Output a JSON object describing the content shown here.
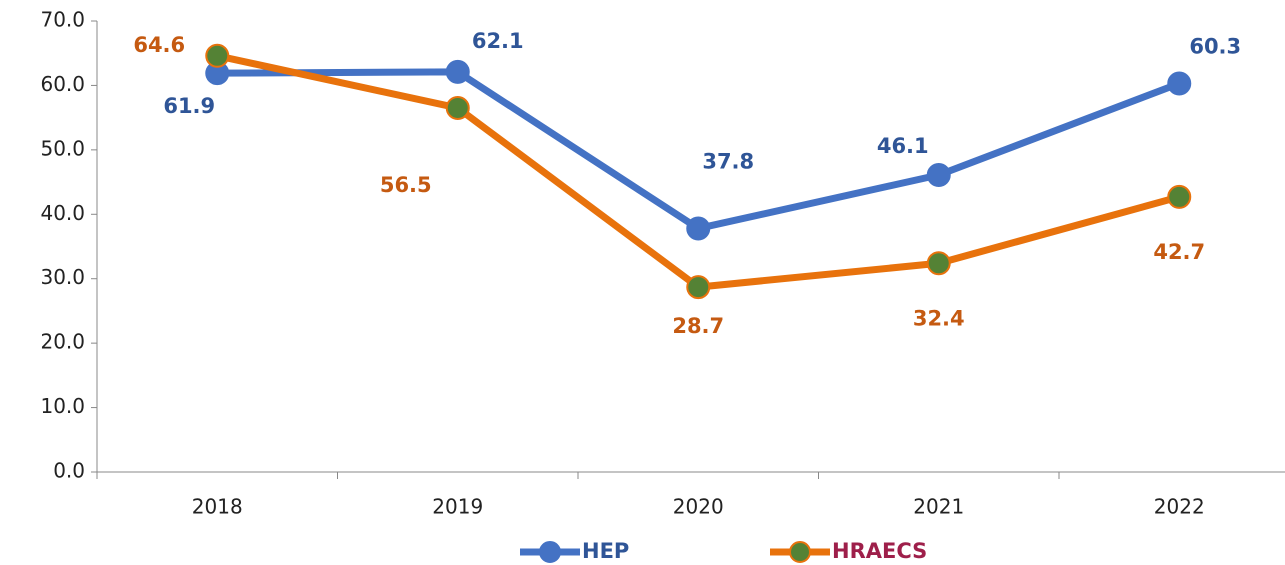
{
  "chart_data": {
    "type": "line",
    "categories": [
      "2018",
      "2019",
      "2020",
      "2021",
      "2022"
    ],
    "series": [
      {
        "name": "HEP",
        "color": "#4472c4",
        "marker_color": "#4472c4",
        "label_color": "#2f5597",
        "legend_color": "#2f5597",
        "values": [
          61.9,
          62.1,
          37.8,
          46.1,
          60.3
        ]
      },
      {
        "name": "HRAECS",
        "color": "#e8720c",
        "marker_color": "#548235",
        "label_color": "#c55a11",
        "legend_color": "#9e1f4a",
        "values": [
          64.6,
          56.5,
          28.7,
          32.4,
          42.7
        ]
      }
    ],
    "ylim": [
      0,
      70
    ],
    "yticks": [
      {
        "value": 0,
        "label": "0.0"
      },
      {
        "value": 10,
        "label": "10.0"
      },
      {
        "value": 20,
        "label": "20.0"
      },
      {
        "value": 30,
        "label": "30.0"
      },
      {
        "value": 40,
        "label": "40.0"
      },
      {
        "value": 50,
        "label": "50.0"
      },
      {
        "value": 60,
        "label": "60.0"
      },
      {
        "value": 70,
        "label": "70.0"
      }
    ],
    "grid": false,
    "legend": "bottom"
  }
}
